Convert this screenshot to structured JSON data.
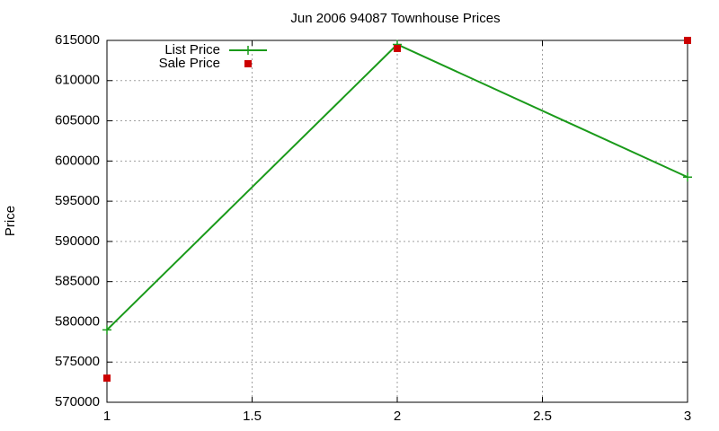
{
  "chart_data": {
    "type": "line",
    "title": "Jun 2006 94087 Townhouse Prices",
    "y_label": "Price",
    "x": [
      1,
      2,
      3
    ],
    "series": [
      {
        "name": "List Price",
        "color": "#1a9a1a",
        "style": "linespoints",
        "values": [
          579000,
          614500,
          598000
        ]
      },
      {
        "name": "Sale Price",
        "color": "#cc0000",
        "style": "points",
        "values": [
          573000,
          614000,
          615000
        ]
      }
    ],
    "xlim": [
      1,
      3
    ],
    "xticks": [
      1,
      1.5,
      2,
      2.5,
      3
    ],
    "ylim": [
      570000,
      615000
    ],
    "yticks": [
      570000,
      575000,
      580000,
      585000,
      590000,
      595000,
      600000,
      605000,
      610000,
      615000
    ],
    "grid": true,
    "legend": "top-left"
  }
}
